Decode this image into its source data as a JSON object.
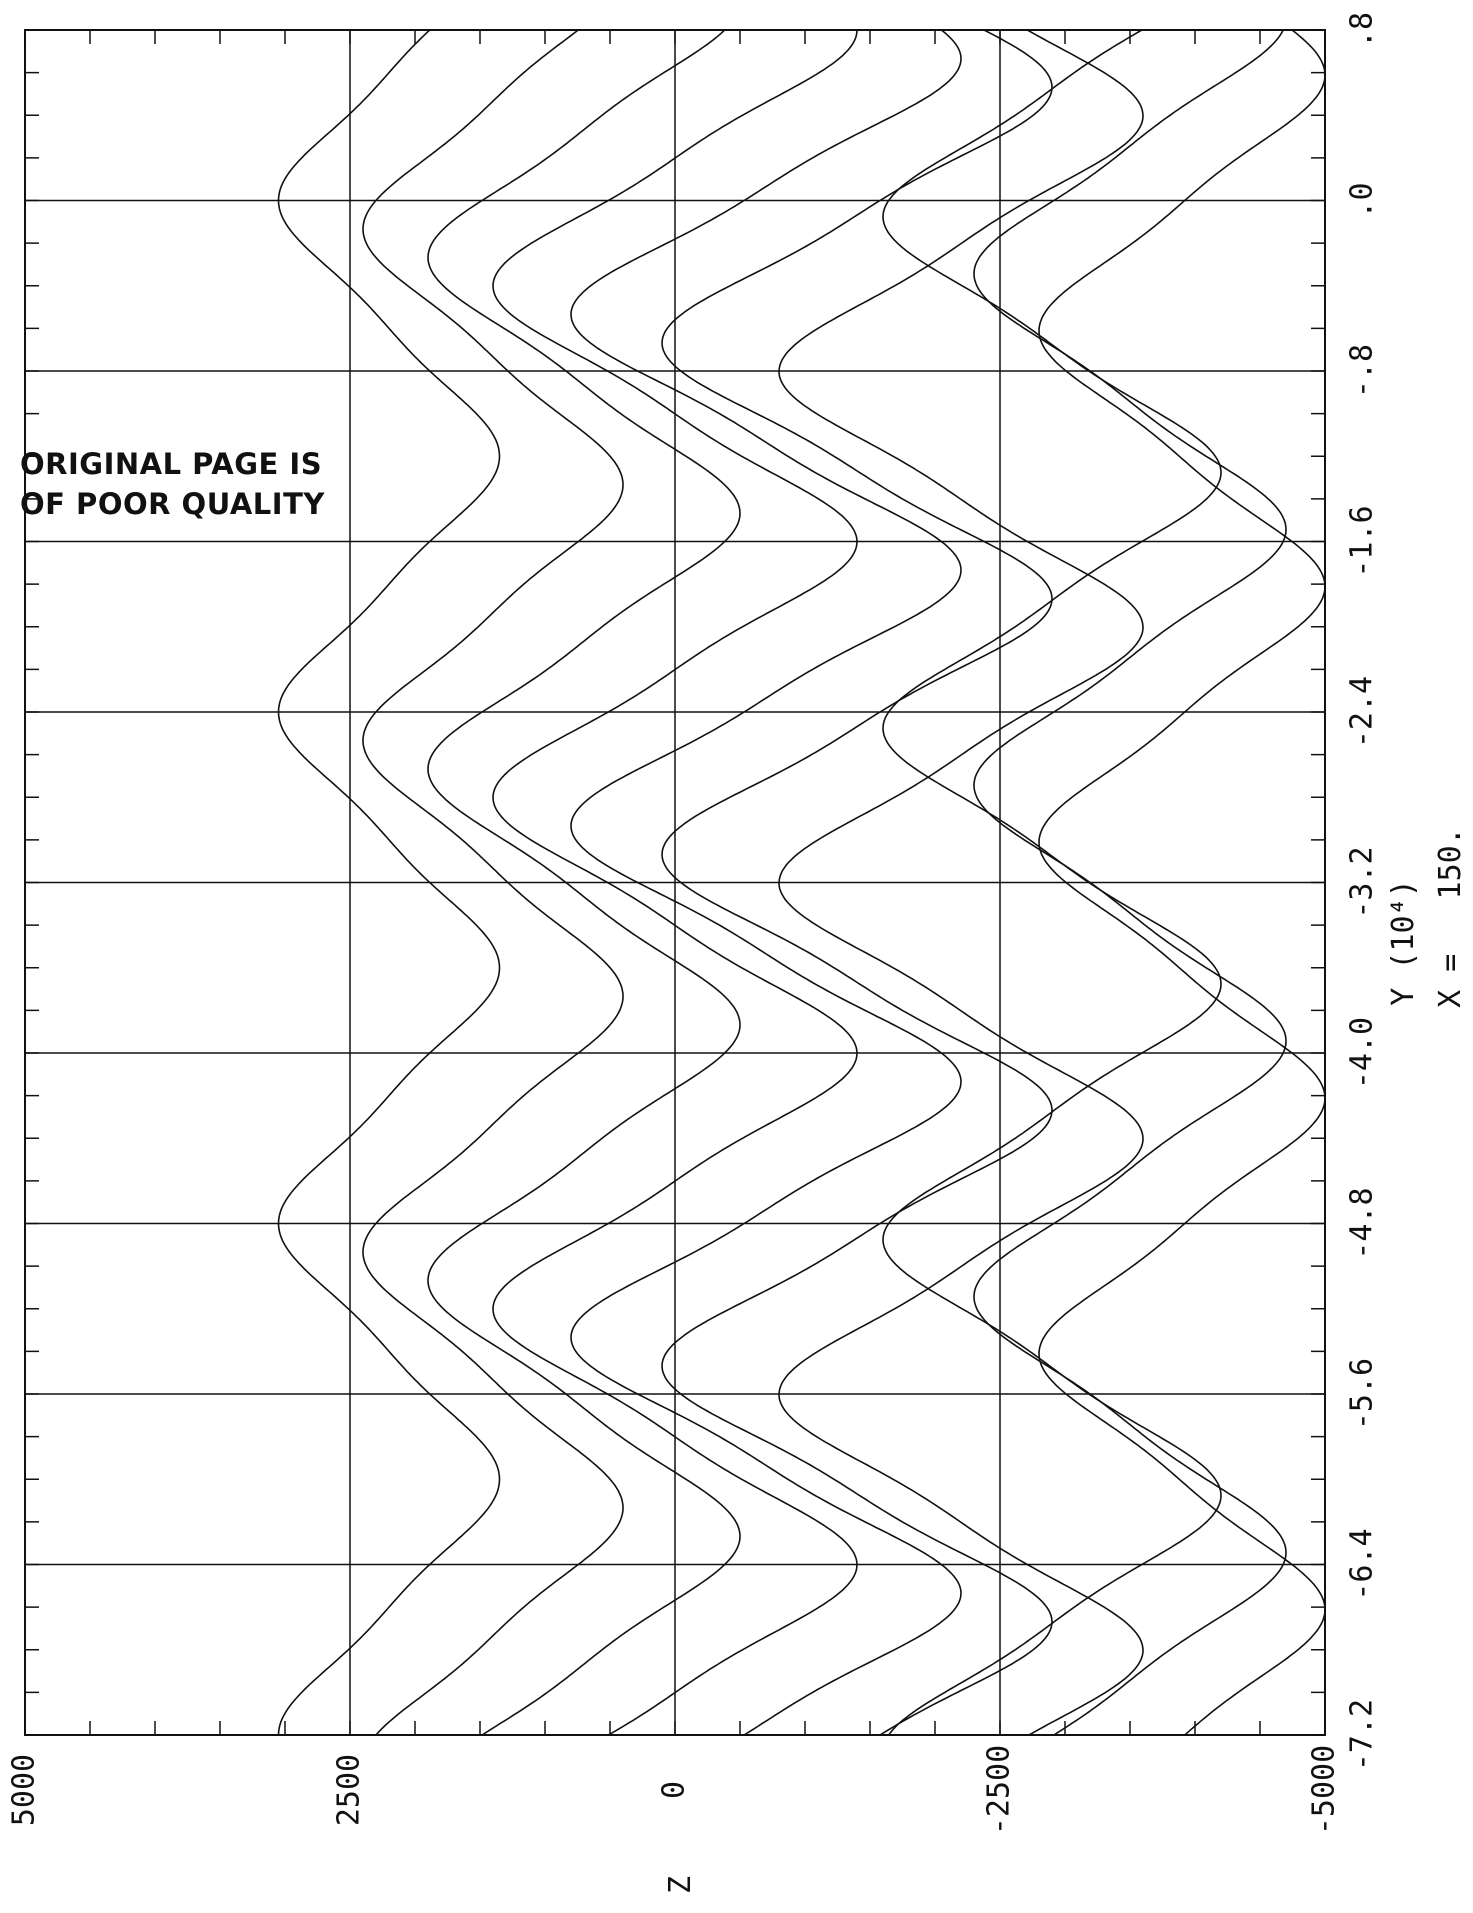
{
  "chart_data": {
    "type": "line",
    "orientation": "rotated-90",
    "x_axis": {
      "label": "Y (10⁴)",
      "ticks": [
        -7.2,
        -6.4,
        -5.6,
        -4.8,
        -4.0,
        -3.2,
        -2.4,
        -1.6,
        -0.8,
        0.0,
        0.8
      ],
      "tick_labels": [
        "-7.2",
        "-6.4",
        "-5.6",
        "-4.8",
        "-4.0",
        "-3.2",
        "-2.4",
        "-1.6",
        "-.8",
        ".0",
        ".8"
      ],
      "range": [
        -7.2,
        0.8
      ]
    },
    "y_axis": {
      "label": "Z",
      "ticks": [
        5000,
        2500,
        0,
        -2500,
        -5000
      ],
      "tick_labels": [
        "5000",
        "2500",
        "0",
        "-2500",
        "-5000"
      ],
      "range": [
        -5000,
        5000
      ]
    },
    "caption": "X =   150.",
    "grid": true,
    "series_description": "particle trajectories in the Y–Z plane",
    "series": [
      {
        "amplitude": 850,
        "center": 2200,
        "period": 2.4,
        "phase": 0.0
      },
      {
        "amplitude": 1000,
        "center": 1400,
        "period": 2.4,
        "phase": 0.35
      },
      {
        "amplitude": 1200,
        "center": 700,
        "period": 2.4,
        "phase": 0.7
      },
      {
        "amplitude": 1400,
        "center": 0,
        "period": 2.4,
        "phase": 1.05
      },
      {
        "amplitude": 1500,
        "center": -700,
        "period": 2.4,
        "phase": 1.4
      },
      {
        "amplitude": 1500,
        "center": -1400,
        "period": 2.4,
        "phase": 1.75
      },
      {
        "amplitude": 1400,
        "center": -2200,
        "period": 2.4,
        "phase": 2.1
      },
      {
        "amplitude": 1300,
        "center": -2900,
        "period": 2.4,
        "phase": 0.2
      },
      {
        "amplitude": 1200,
        "center": -3500,
        "period": 2.4,
        "phase": 0.9
      },
      {
        "amplitude": 1100,
        "center": -3900,
        "period": 2.4,
        "phase": 1.6
      }
    ]
  },
  "stamp": {
    "line1": "ORIGINAL PAGE IS",
    "line2": "OF POOR QUALITY"
  },
  "colors": {
    "ink": "#111111",
    "background": "#ffffff"
  }
}
